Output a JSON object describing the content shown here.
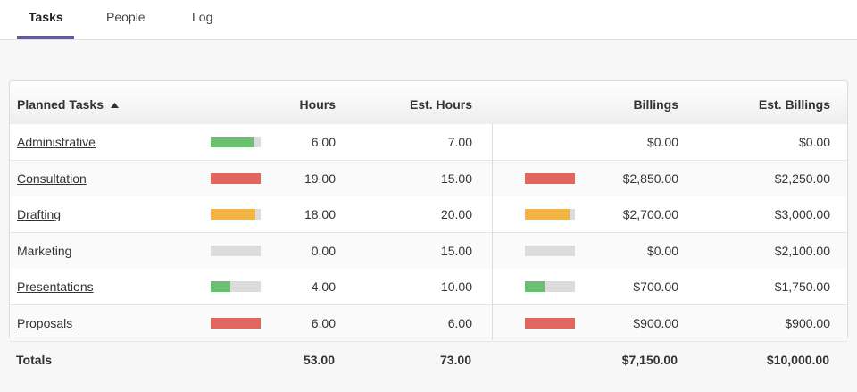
{
  "tabs": [
    "Tasks",
    "People",
    "Log"
  ],
  "table": {
    "columns": [
      "Planned Tasks",
      "Hours",
      "Est. Hours",
      "Billings",
      "Est. Billings"
    ],
    "rows": [
      {
        "task": "Administrative",
        "linked": true,
        "hours": "6.00",
        "est_hours": "7.00",
        "billings": "$0.00",
        "est_billings": "$0.00"
      },
      {
        "task": "Consultation",
        "linked": true,
        "hours": "19.00",
        "est_hours": "15.00",
        "billings": "$2,850.00",
        "est_billings": "$2,250.00"
      },
      {
        "task": "Drafting",
        "linked": true,
        "hours": "18.00",
        "est_hours": "20.00",
        "billings": "$2,700.00",
        "est_billings": "$3,000.00"
      },
      {
        "task": "Marketing",
        "linked": false,
        "hours": "0.00",
        "est_hours": "15.00",
        "billings": "$0.00",
        "est_billings": "$2,100.00"
      },
      {
        "task": "Presentations",
        "linked": true,
        "hours": "4.00",
        "est_hours": "10.00",
        "billings": "$700.00",
        "est_billings": "$1,750.00"
      },
      {
        "task": "Proposals",
        "linked": true,
        "hours": "6.00",
        "est_hours": "6.00",
        "billings": "$900.00",
        "est_billings": "$900.00"
      }
    ],
    "totals": {
      "label": "Totals",
      "hours": "53.00",
      "est_hours": "73.00",
      "billings": "$7,150.00",
      "est_billings": "$10,000.00"
    },
    "bar_colors": {
      "under": "#6bbf72",
      "near": "#f4b443",
      "over": "#e0665f",
      "track": "#dcdcdc"
    }
  }
}
